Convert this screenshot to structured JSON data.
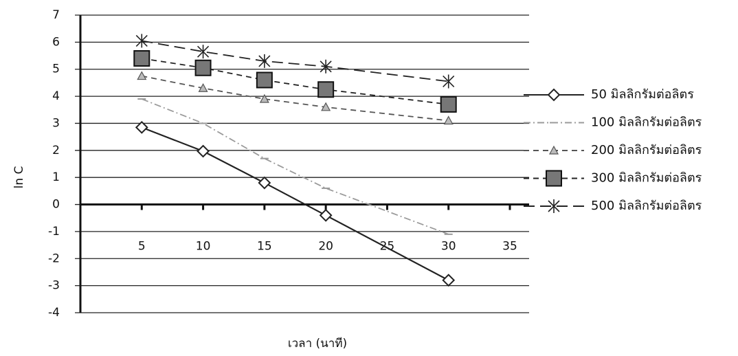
{
  "chart_data": {
    "type": "line",
    "x_label": "เวลา (นาที)",
    "y_label": "ln C",
    "xlim": [
      0,
      35
    ],
    "xticks": [
      5,
      10,
      15,
      20,
      25,
      30,
      35
    ],
    "ylim": [
      -4,
      7
    ],
    "yticks": [
      -4,
      -3,
      -2,
      -1,
      0,
      1,
      2,
      3,
      4,
      5,
      6,
      7
    ],
    "grid": true,
    "legend": "right",
    "series": [
      {
        "name": "50 มิลลิกรัมต่อลิตร",
        "color": "#222222",
        "marker": "diamond",
        "dash": "solid",
        "x": [
          5,
          10,
          15,
          20,
          30
        ],
        "values": [
          2.85,
          1.97,
          0.8,
          -0.4,
          -2.8
        ]
      },
      {
        "name": "100 มิลลิกรัมต่อลิตร",
        "color": "#9a9a9a",
        "marker": "dash",
        "dash": "dashdot",
        "x": [
          5,
          10,
          15,
          20,
          30
        ],
        "values": [
          3.9,
          3.0,
          1.7,
          0.6,
          -1.1
        ]
      },
      {
        "name": "200 มิลลิกรัมต่อลิตร",
        "color": "#555555",
        "marker": "triangle",
        "dash": "dashed",
        "x": [
          5,
          10,
          15,
          20,
          30
        ],
        "values": [
          4.75,
          4.3,
          3.9,
          3.6,
          3.1
        ]
      },
      {
        "name": "300 มิลลิกรัมต่อลิตร",
        "color": "#222222",
        "marker": "square",
        "dash": "dashed",
        "x": [
          5,
          10,
          15,
          20,
          30
        ],
        "values": [
          5.4,
          5.05,
          4.6,
          4.25,
          3.7
        ]
      },
      {
        "name": "500 มิลลิกรัมต่อลิตร",
        "color": "#222222",
        "marker": "star",
        "dash": "longdash",
        "x": [
          5,
          10,
          15,
          20,
          30
        ],
        "values": [
          6.05,
          5.65,
          5.3,
          5.1,
          4.55
        ]
      }
    ]
  }
}
